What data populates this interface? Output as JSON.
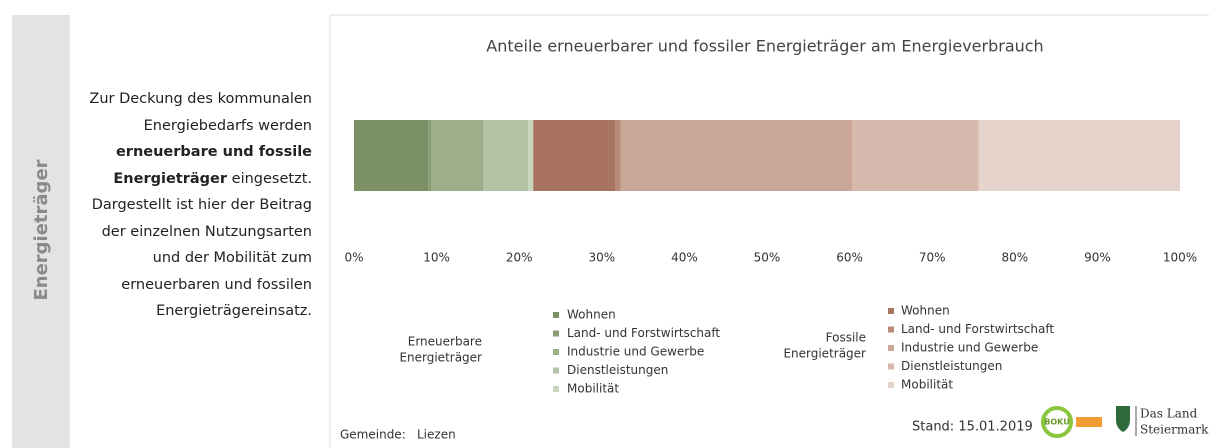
{
  "sidebar": "Energieträger",
  "description": [
    "Zur Deckung des kommunalen Energiebedarfs werden ",
    "erneuerbare und fossile Energieträger",
    " eingesetzt. Dargestellt ist hier der Beitrag der einzelnen Nutzungsarten und der Mobilität zum erneuerbaren und fossilen Energieträgereinsatz."
  ],
  "chart_data": {
    "type": "bar",
    "orientation": "horizontal",
    "stacked": true,
    "title": "Anteile erneuerbarer und fossiler Energieträger am Energieverbrauch",
    "xlim": [
      0,
      100
    ],
    "xticks": [
      {
        "value": 0,
        "label": "0%"
      },
      {
        "value": 10,
        "label": "10%"
      },
      {
        "value": 20,
        "label": "20%"
      },
      {
        "value": 30,
        "label": "30%"
      },
      {
        "value": 40,
        "label": "40%"
      },
      {
        "value": 50,
        "label": "50%"
      },
      {
        "value": 60,
        "label": "60%"
      },
      {
        "value": 70,
        "label": "70%"
      },
      {
        "value": 80,
        "label": "80%"
      },
      {
        "value": 90,
        "label": "90%"
      },
      {
        "value": 100,
        "label": "100%"
      }
    ],
    "legend_groups": [
      {
        "label": [
          "Erneuerbare",
          "Energieträger"
        ]
      },
      {
        "label": [
          "Fossile",
          "Energieträger"
        ]
      }
    ],
    "series": [
      {
        "name": "Wohnen",
        "group": 0,
        "color": "#7b9064",
        "values": [
          9.0
        ]
      },
      {
        "name": "Land- und Forstwirtschaft",
        "group": 0,
        "color": "#8a9e76",
        "values": [
          0.4
        ]
      },
      {
        "name": "Industrie und Gewerbe",
        "group": 0,
        "color": "#9caf8a",
        "values": [
          6.3
        ]
      },
      {
        "name": "Dienstleistungen",
        "group": 0,
        "color": "#b4c3a5",
        "values": [
          5.4
        ]
      },
      {
        "name": "Mobilität",
        "group": 0,
        "color": "#cad5be",
        "values": [
          0.6
        ]
      },
      {
        "name": "Wohnen",
        "group": 1,
        "color": "#a8745f",
        "values": [
          9.9
        ]
      },
      {
        "name": "Land- und Forstwirtschaft",
        "group": 1,
        "color": "#b98b7b",
        "values": [
          0.7
        ]
      },
      {
        "name": "Industrie und Gewerbe",
        "group": 1,
        "color": "#caa698",
        "values": [
          28.0
        ]
      },
      {
        "name": "Dienstleistungen",
        "group": 1,
        "color": "#d6b8ac",
        "values": [
          15.3
        ]
      },
      {
        "name": "Mobilität",
        "group": 1,
        "color": "#e6d4cc",
        "values": [
          24.4
        ]
      }
    ]
  },
  "footer": {
    "gemeinde_label": "Gemeinde:",
    "gemeinde": "Liezen",
    "stand": "Stand: 15.01.2019",
    "logo1": "BOKU",
    "logo3": [
      "Das Land",
      "Steiermark"
    ]
  }
}
